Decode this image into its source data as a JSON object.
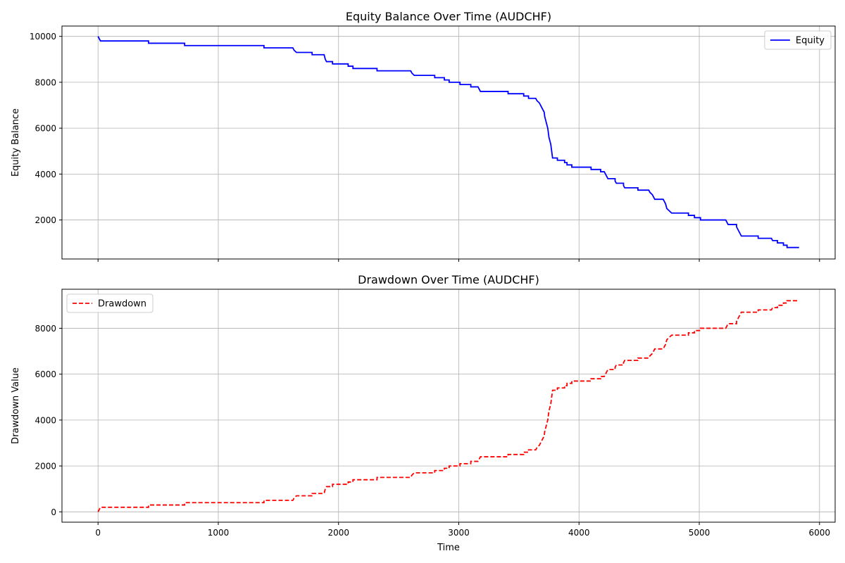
{
  "chart_data": [
    {
      "type": "line",
      "title": "Equity Balance Over Time (AUDCHF)",
      "xlabel": "",
      "ylabel": "Equity Balance",
      "xlim": [
        -300,
        6130
      ],
      "ylim": [
        300,
        10450
      ],
      "xticks": [
        0,
        1000,
        2000,
        3000,
        4000,
        5000,
        6000
      ],
      "yticks": [
        2000,
        4000,
        6000,
        8000,
        10000
      ],
      "grid": true,
      "legend_position": "upper right",
      "series": [
        {
          "name": "Equity",
          "color": "#0000ff",
          "style": "solid",
          "points": [
            [
              0,
              10000
            ],
            [
              10,
              9900
            ],
            [
              20,
              9800
            ],
            [
              420,
              9800
            ],
            [
              420,
              9700
            ],
            [
              720,
              9700
            ],
            [
              720,
              9600
            ],
            [
              1380,
              9600
            ],
            [
              1380,
              9500
            ],
            [
              1620,
              9500
            ],
            [
              1630,
              9400
            ],
            [
              1650,
              9300
            ],
            [
              1780,
              9300
            ],
            [
              1780,
              9200
            ],
            [
              1880,
              9200
            ],
            [
              1890,
              9000
            ],
            [
              1900,
              8900
            ],
            [
              1950,
              8900
            ],
            [
              1950,
              8800
            ],
            [
              2080,
              8800
            ],
            [
              2080,
              8700
            ],
            [
              2120,
              8700
            ],
            [
              2120,
              8600
            ],
            [
              2320,
              8600
            ],
            [
              2320,
              8500
            ],
            [
              2600,
              8500
            ],
            [
              2610,
              8400
            ],
            [
              2630,
              8300
            ],
            [
              2800,
              8300
            ],
            [
              2800,
              8200
            ],
            [
              2880,
              8200
            ],
            [
              2880,
              8100
            ],
            [
              2920,
              8100
            ],
            [
              2920,
              8000
            ],
            [
              3010,
              8000
            ],
            [
              3010,
              7900
            ],
            [
              3100,
              7900
            ],
            [
              3100,
              7800
            ],
            [
              3160,
              7800
            ],
            [
              3170,
              7700
            ],
            [
              3180,
              7600
            ],
            [
              3410,
              7600
            ],
            [
              3410,
              7500
            ],
            [
              3540,
              7500
            ],
            [
              3540,
              7400
            ],
            [
              3580,
              7400
            ],
            [
              3580,
              7300
            ],
            [
              3640,
              7300
            ],
            [
              3650,
              7200
            ],
            [
              3670,
              7100
            ],
            [
              3680,
              7000
            ],
            [
              3690,
              6900
            ],
            [
              3700,
              6800
            ],
            [
              3710,
              6700
            ],
            [
              3715,
              6500
            ],
            [
              3720,
              6400
            ],
            [
              3730,
              6200
            ],
            [
              3740,
              6000
            ],
            [
              3745,
              5800
            ],
            [
              3750,
              5600
            ],
            [
              3760,
              5400
            ],
            [
              3765,
              5300
            ],
            [
              3770,
              5100
            ],
            [
              3775,
              4900
            ],
            [
              3780,
              4700
            ],
            [
              3820,
              4700
            ],
            [
              3820,
              4600
            ],
            [
              3880,
              4600
            ],
            [
              3880,
              4500
            ],
            [
              3900,
              4500
            ],
            [
              3900,
              4400
            ],
            [
              3940,
              4400
            ],
            [
              3940,
              4300
            ],
            [
              4100,
              4300
            ],
            [
              4100,
              4200
            ],
            [
              4180,
              4200
            ],
            [
              4180,
              4100
            ],
            [
              4210,
              4100
            ],
            [
              4220,
              4000
            ],
            [
              4230,
              3900
            ],
            [
              4240,
              3800
            ],
            [
              4300,
              3800
            ],
            [
              4300,
              3700
            ],
            [
              4310,
              3600
            ],
            [
              4370,
              3600
            ],
            [
              4370,
              3500
            ],
            [
              4380,
              3400
            ],
            [
              4490,
              3400
            ],
            [
              4490,
              3300
            ],
            [
              4580,
              3300
            ],
            [
              4590,
              3200
            ],
            [
              4610,
              3100
            ],
            [
              4620,
              3000
            ],
            [
              4630,
              2900
            ],
            [
              4700,
              2900
            ],
            [
              4710,
              2800
            ],
            [
              4720,
              2700
            ],
            [
              4725,
              2600
            ],
            [
              4730,
              2500
            ],
            [
              4750,
              2400
            ],
            [
              4770,
              2300
            ],
            [
              4910,
              2300
            ],
            [
              4910,
              2200
            ],
            [
              4960,
              2200
            ],
            [
              4960,
              2100
            ],
            [
              5010,
              2100
            ],
            [
              5010,
              2000
            ],
            [
              5220,
              2000
            ],
            [
              5230,
              1900
            ],
            [
              5240,
              1800
            ],
            [
              5310,
              1800
            ],
            [
              5310,
              1700
            ],
            [
              5320,
              1600
            ],
            [
              5330,
              1500
            ],
            [
              5340,
              1400
            ],
            [
              5350,
              1300
            ],
            [
              5490,
              1300
            ],
            [
              5490,
              1200
            ],
            [
              5600,
              1200
            ],
            [
              5610,
              1100
            ],
            [
              5650,
              1100
            ],
            [
              5650,
              1000
            ],
            [
              5700,
              1000
            ],
            [
              5700,
              900
            ],
            [
              5730,
              900
            ],
            [
              5730,
              800
            ],
            [
              5830,
              800
            ]
          ]
        }
      ]
    },
    {
      "type": "line",
      "title": "Drawdown Over Time (AUDCHF)",
      "xlabel": "Time",
      "ylabel": "Drawdown Value",
      "xlim": [
        -300,
        6130
      ],
      "ylim": [
        -450,
        9700
      ],
      "xticks": [
        0,
        1000,
        2000,
        3000,
        4000,
        5000,
        6000
      ],
      "yticks": [
        0,
        2000,
        4000,
        6000,
        8000
      ],
      "grid": true,
      "legend_position": "upper left",
      "series": [
        {
          "name": "Drawdown",
          "color": "#ff0000",
          "style": "dashed",
          "points": [
            [
              0,
              0
            ],
            [
              10,
              100
            ],
            [
              20,
              200
            ],
            [
              420,
              200
            ],
            [
              420,
              300
            ],
            [
              720,
              300
            ],
            [
              720,
              400
            ],
            [
              1380,
              400
            ],
            [
              1380,
              500
            ],
            [
              1620,
              500
            ],
            [
              1630,
              600
            ],
            [
              1650,
              700
            ],
            [
              1780,
              700
            ],
            [
              1780,
              800
            ],
            [
              1880,
              800
            ],
            [
              1890,
              1000
            ],
            [
              1900,
              1100
            ],
            [
              1950,
              1100
            ],
            [
              1950,
              1200
            ],
            [
              2080,
              1200
            ],
            [
              2080,
              1300
            ],
            [
              2120,
              1300
            ],
            [
              2120,
              1400
            ],
            [
              2320,
              1400
            ],
            [
              2320,
              1500
            ],
            [
              2600,
              1500
            ],
            [
              2610,
              1600
            ],
            [
              2630,
              1700
            ],
            [
              2800,
              1700
            ],
            [
              2800,
              1800
            ],
            [
              2880,
              1800
            ],
            [
              2880,
              1900
            ],
            [
              2920,
              1900
            ],
            [
              2920,
              2000
            ],
            [
              3010,
              2000
            ],
            [
              3010,
              2100
            ],
            [
              3100,
              2100
            ],
            [
              3100,
              2200
            ],
            [
              3160,
              2200
            ],
            [
              3170,
              2300
            ],
            [
              3180,
              2400
            ],
            [
              3410,
              2400
            ],
            [
              3410,
              2500
            ],
            [
              3540,
              2500
            ],
            [
              3540,
              2600
            ],
            [
              3580,
              2600
            ],
            [
              3580,
              2700
            ],
            [
              3640,
              2700
            ],
            [
              3650,
              2800
            ],
            [
              3670,
              2900
            ],
            [
              3680,
              3000
            ],
            [
              3690,
              3100
            ],
            [
              3700,
              3200
            ],
            [
              3710,
              3300
            ],
            [
              3715,
              3500
            ],
            [
              3720,
              3600
            ],
            [
              3730,
              3800
            ],
            [
              3740,
              4000
            ],
            [
              3745,
              4200
            ],
            [
              3750,
              4400
            ],
            [
              3760,
              4600
            ],
            [
              3765,
              4700
            ],
            [
              3770,
              4900
            ],
            [
              3775,
              5100
            ],
            [
              3780,
              5300
            ],
            [
              3820,
              5300
            ],
            [
              3820,
              5400
            ],
            [
              3880,
              5400
            ],
            [
              3880,
              5500
            ],
            [
              3900,
              5500
            ],
            [
              3900,
              5600
            ],
            [
              3940,
              5600
            ],
            [
              3940,
              5700
            ],
            [
              4100,
              5700
            ],
            [
              4100,
              5800
            ],
            [
              4180,
              5800
            ],
            [
              4180,
              5900
            ],
            [
              4210,
              5900
            ],
            [
              4220,
              6000
            ],
            [
              4230,
              6100
            ],
            [
              4240,
              6200
            ],
            [
              4300,
              6200
            ],
            [
              4300,
              6300
            ],
            [
              4310,
              6400
            ],
            [
              4370,
              6400
            ],
            [
              4370,
              6500
            ],
            [
              4380,
              6600
            ],
            [
              4490,
              6600
            ],
            [
              4490,
              6700
            ],
            [
              4580,
              6700
            ],
            [
              4590,
              6800
            ],
            [
              4610,
              6900
            ],
            [
              4620,
              7000
            ],
            [
              4630,
              7100
            ],
            [
              4700,
              7100
            ],
            [
              4710,
              7200
            ],
            [
              4720,
              7300
            ],
            [
              4725,
              7400
            ],
            [
              4730,
              7500
            ],
            [
              4750,
              7600
            ],
            [
              4770,
              7700
            ],
            [
              4910,
              7700
            ],
            [
              4910,
              7800
            ],
            [
              4960,
              7800
            ],
            [
              4960,
              7900
            ],
            [
              5010,
              7900
            ],
            [
              5010,
              8000
            ],
            [
              5220,
              8000
            ],
            [
              5230,
              8100
            ],
            [
              5240,
              8200
            ],
            [
              5310,
              8200
            ],
            [
              5310,
              8300
            ],
            [
              5320,
              8400
            ],
            [
              5330,
              8500
            ],
            [
              5340,
              8600
            ],
            [
              5350,
              8700
            ],
            [
              5490,
              8700
            ],
            [
              5490,
              8800
            ],
            [
              5600,
              8800
            ],
            [
              5610,
              8900
            ],
            [
              5650,
              8900
            ],
            [
              5650,
              9000
            ],
            [
              5700,
              9000
            ],
            [
              5700,
              9100
            ],
            [
              5730,
              9100
            ],
            [
              5730,
              9200
            ],
            [
              5830,
              9200
            ]
          ]
        }
      ]
    }
  ]
}
